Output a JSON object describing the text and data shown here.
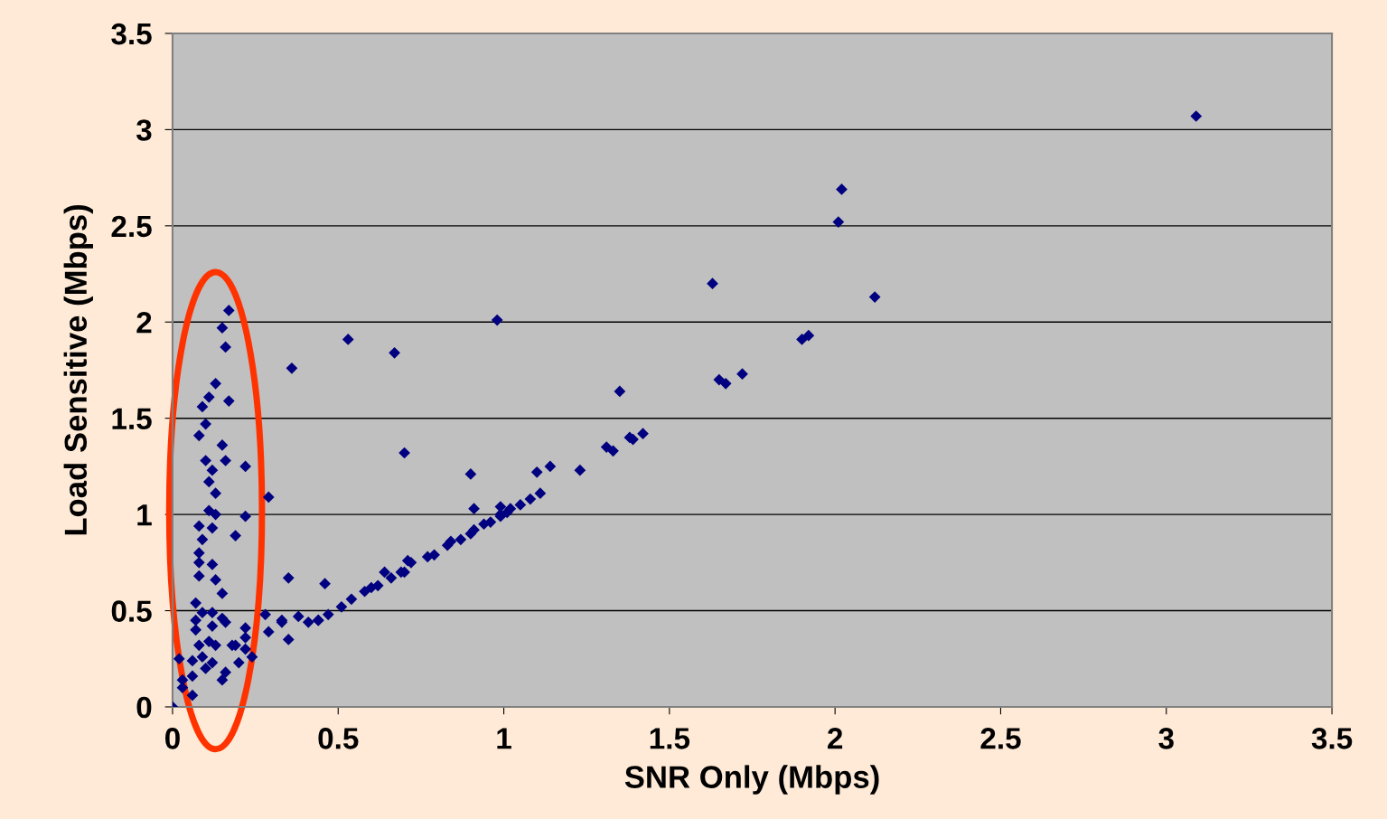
{
  "chart_data": {
    "type": "scatter",
    "xlabel": "SNR Only (Mbps)",
    "ylabel": "Load Sensitive (Mbps)",
    "xlim": [
      0,
      3.5
    ],
    "ylim": [
      0,
      3.5
    ],
    "xticks": [
      0,
      0.5,
      1,
      1.5,
      2,
      2.5,
      3,
      3.5
    ],
    "yticks": [
      0,
      0.5,
      1,
      1.5,
      2,
      2.5,
      3,
      3.5
    ],
    "grid": "y",
    "marker": "diamond",
    "series": [
      {
        "color": "#000080",
        "x": [
          3.09,
          2.02,
          2.01,
          2.12,
          1.63,
          1.9,
          1.92,
          1.65,
          1.67,
          1.72,
          1.35,
          0.98,
          0.53,
          0.67,
          0.36,
          0.7,
          0.9,
          0.91,
          0.99,
          0.35,
          0.46,
          1.42,
          1.38,
          1.39,
          1.31,
          1.33,
          1.23,
          1.14,
          1.1,
          1.11,
          1.08,
          1.05,
          1.02,
          1.01,
          0.99,
          0.99,
          0.96,
          0.94,
          0.91,
          0.9,
          0.87,
          0.84,
          0.83,
          0.79,
          0.77,
          0.72,
          0.71,
          0.69,
          0.64,
          0.66,
          0.62,
          0.58,
          0.54,
          0.51,
          0.47,
          0.44,
          0.41,
          0.38,
          0.33,
          0.6,
          0.7,
          0.17,
          0.15,
          0.16,
          0.13,
          0.11,
          0.09,
          0.17,
          0.1,
          0.08,
          0.15,
          0.1,
          0.16,
          0.22,
          0.12,
          0.11,
          0.13,
          0.29,
          0.11,
          0.13,
          0.22,
          0.08,
          0.12,
          0.19,
          0.09,
          0.08,
          0.08,
          0.12,
          0.08,
          0.13,
          0.15,
          0.07,
          0.09,
          0.12,
          0.07,
          0.15,
          0.16,
          0.12,
          0.22,
          0.28,
          0.07,
          0.29,
          0.33,
          0.18,
          0.19,
          0.22,
          0.22,
          0.02,
          0.08,
          0.11,
          0.13,
          0.09,
          0.12,
          0.06,
          0.1,
          0.03,
          0.06,
          0.03,
          0,
          0.06,
          0.15,
          0.24,
          0.35,
          0.44,
          0.16,
          0.2
        ],
        "values": [
          3.07,
          2.69,
          2.52,
          2.13,
          2.2,
          1.91,
          1.93,
          1.7,
          1.68,
          1.73,
          1.64,
          2.01,
          1.91,
          1.84,
          1.76,
          1.32,
          1.21,
          1.03,
          1.04,
          0.67,
          0.64,
          1.42,
          1.4,
          1.39,
          1.35,
          1.33,
          1.23,
          1.25,
          1.22,
          1.11,
          1.08,
          1.05,
          1.03,
          1.01,
          0.99,
          1,
          0.96,
          0.95,
          0.92,
          0.9,
          0.87,
          0.86,
          0.84,
          0.79,
          0.78,
          0.75,
          0.76,
          0.7,
          0.7,
          0.67,
          0.63,
          0.6,
          0.56,
          0.52,
          0.48,
          0.45,
          0.44,
          0.47,
          0.45,
          0.62,
          0.7,
          2.06,
          1.97,
          1.87,
          1.68,
          1.61,
          1.56,
          1.59,
          1.47,
          1.41,
          1.36,
          1.28,
          1.28,
          1.25,
          1.23,
          1.17,
          1.11,
          1.09,
          1.02,
          1,
          0.99,
          0.94,
          0.93,
          0.89,
          0.87,
          0.8,
          0.75,
          0.74,
          0.68,
          0.66,
          0.59,
          0.54,
          0.49,
          0.49,
          0.45,
          0.46,
          0.44,
          0.42,
          0.41,
          0.48,
          0.4,
          0.39,
          0.44,
          0.32,
          0.32,
          0.36,
          0.3,
          0.25,
          0.32,
          0.34,
          0.32,
          0.26,
          0.23,
          0.24,
          0.2,
          0.14,
          0.16,
          0.1,
          0,
          0.06,
          0.14,
          0.26,
          0.35,
          0.45,
          0.18,
          0.23
        ]
      }
    ]
  }
}
